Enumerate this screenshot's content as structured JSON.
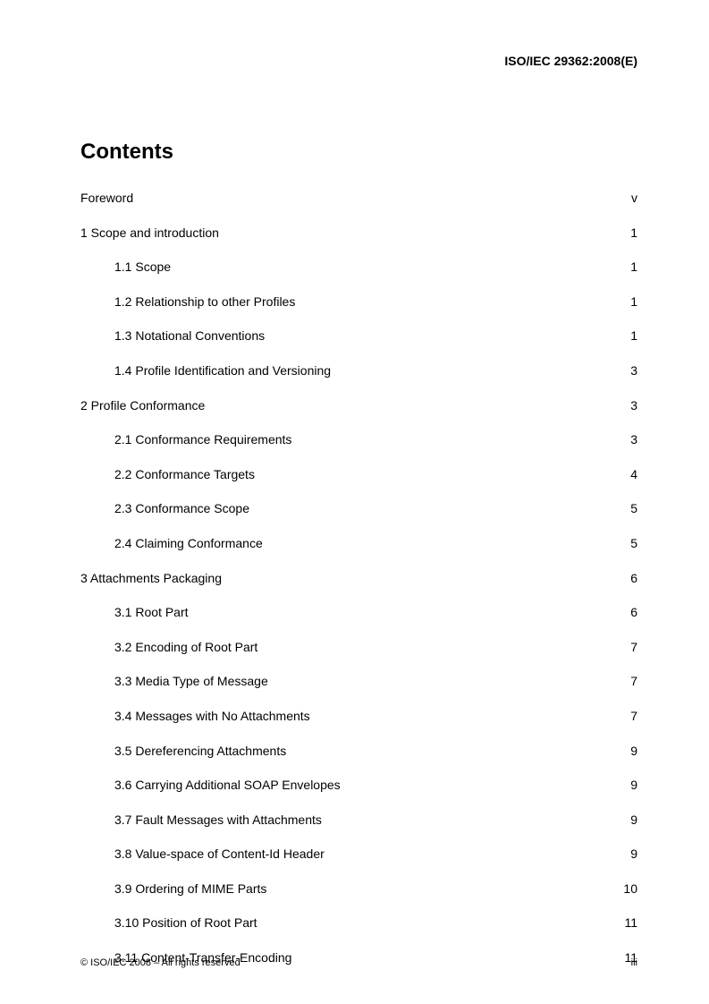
{
  "header": {
    "document_code": "ISO/IEC 29362:2008(E)"
  },
  "contents_title": "Contents",
  "toc": [
    {
      "level": 0,
      "label": "Foreword",
      "page": "v"
    },
    {
      "level": 0,
      "label": "1  Scope and introduction",
      "page": "1"
    },
    {
      "level": 1,
      "label": "1.1 Scope",
      "page": "1"
    },
    {
      "level": 1,
      "label": "1.2 Relationship to other Profiles",
      "page": "1"
    },
    {
      "level": 1,
      "label": "1.3 Notational Conventions",
      "page": "1"
    },
    {
      "level": 1,
      "label": "1.4 Profile Identification and Versioning",
      "page": "3"
    },
    {
      "level": 0,
      "label": "2  Profile Conformance",
      "page": "3"
    },
    {
      "level": 1,
      "label": "2.1 Conformance Requirements",
      "page": "3"
    },
    {
      "level": 1,
      "label": "2.2 Conformance Targets",
      "page": "4"
    },
    {
      "level": 1,
      "label": "2.3 Conformance Scope",
      "page": "5"
    },
    {
      "level": 1,
      "label": "2.4 Claiming Conformance",
      "page": "5"
    },
    {
      "level": 0,
      "label": "3  Attachments Packaging",
      "page": "6"
    },
    {
      "level": 1,
      "label": "3.1 Root Part",
      "page": "6"
    },
    {
      "level": 1,
      "label": "3.2 Encoding of Root Part",
      "page": "7"
    },
    {
      "level": 1,
      "label": "3.3 Media Type of Message",
      "page": "7"
    },
    {
      "level": 1,
      "label": "3.4 Messages with No Attachments",
      "page": "7"
    },
    {
      "level": 1,
      "label": "3.5 Dereferencing Attachments",
      "page": "9"
    },
    {
      "level": 1,
      "label": "3.6 Carrying Additional SOAP Envelopes",
      "page": "9"
    },
    {
      "level": 1,
      "label": "3.7 Fault Messages with Attachments",
      "page": "9"
    },
    {
      "level": 1,
      "label": "3.8 Value-space of Content-Id Header",
      "page": "9"
    },
    {
      "level": 1,
      "label": "3.9 Ordering of MIME Parts",
      "page": "10"
    },
    {
      "level": 1,
      "label": "3.10 Position of Root Part",
      "page": "11"
    },
    {
      "level": 1,
      "label": "3.11 Content-Transfer-Encoding",
      "page": "11"
    }
  ],
  "footer": {
    "copyright": "© ISO/IEC 2008 – All rights reserved",
    "page_number": "iii"
  }
}
